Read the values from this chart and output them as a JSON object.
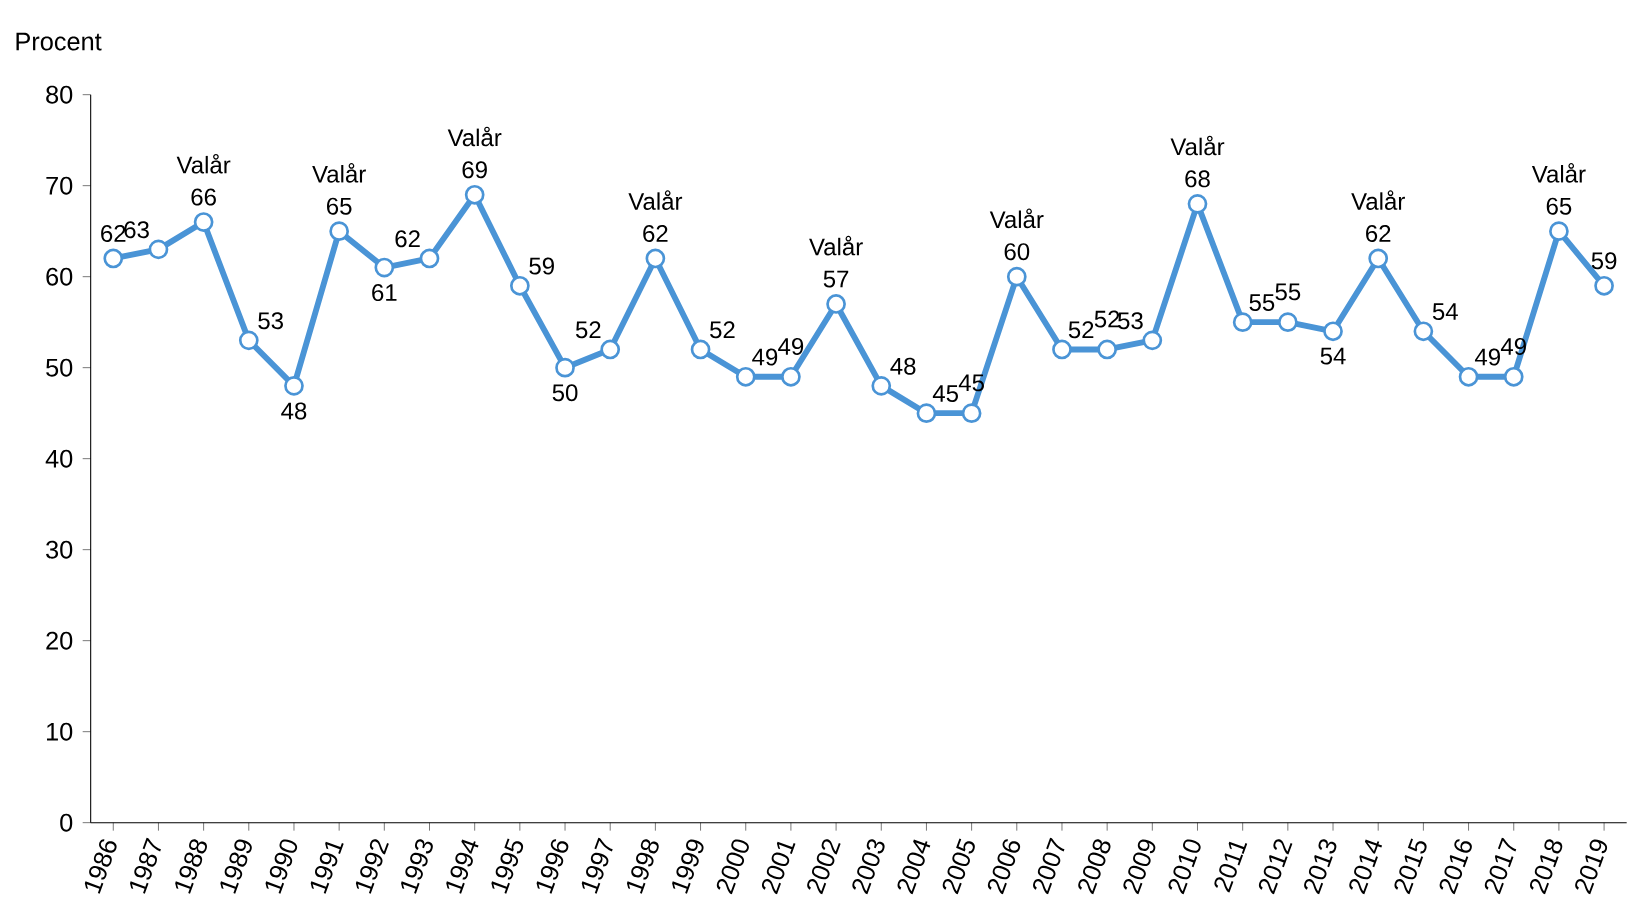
{
  "chart_data": {
    "type": "line",
    "ylabel": "Procent",
    "categories": [
      "1986",
      "1987",
      "1988",
      "1989",
      "1990",
      "1991",
      "1992",
      "1993",
      "1994",
      "1995",
      "1996",
      "1997",
      "1998",
      "1999",
      "2000",
      "2001",
      "2002",
      "2003",
      "2004",
      "2005",
      "2006",
      "2007",
      "2008",
      "2009",
      "2010",
      "2011",
      "2012",
      "2013",
      "2014",
      "2015",
      "2016",
      "2017",
      "2018",
      "2019"
    ],
    "values": [
      62,
      63,
      66,
      53,
      48,
      65,
      61,
      62,
      69,
      59,
      50,
      52,
      62,
      52,
      49,
      49,
      57,
      48,
      45,
      45,
      60,
      52,
      52,
      53,
      68,
      55,
      55,
      54,
      62,
      54,
      49,
      49,
      65,
      59
    ],
    "color": "#4a94d6",
    "marker": "circle",
    "line_style": "solid",
    "data_labels": true,
    "ylim": [
      0,
      80
    ],
    "yticks": [
      0,
      10,
      20,
      30,
      40,
      50,
      60,
      70,
      80
    ],
    "annotations": [
      {
        "text": "Valår",
        "x": "1988",
        "y": 66
      },
      {
        "text": "Valår",
        "x": "1991",
        "y": 65
      },
      {
        "text": "Valår",
        "x": "1994",
        "y": 69
      },
      {
        "text": "Valår",
        "x": "1998",
        "y": 62
      },
      {
        "text": "Valår",
        "x": "2002",
        "y": 57
      },
      {
        "text": "Valår",
        "x": "2006",
        "y": 60
      },
      {
        "text": "Valår",
        "x": "2010",
        "y": 68
      },
      {
        "text": "Valår",
        "x": "2014",
        "y": 62
      },
      {
        "text": "Valår",
        "x": "2018",
        "y": 65
      }
    ]
  }
}
